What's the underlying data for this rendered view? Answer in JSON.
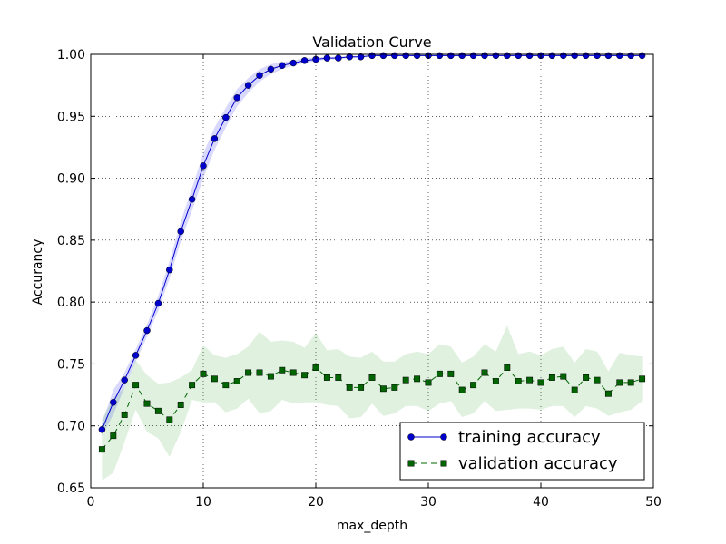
{
  "chart_data": {
    "type": "line",
    "title": "Validation Curve",
    "xlabel": "max_depth",
    "ylabel": "Accurancy",
    "xlim": [
      0,
      50
    ],
    "ylim": [
      0.65,
      1.0
    ],
    "xticks": [
      0,
      10,
      20,
      30,
      40,
      50
    ],
    "yticks": [
      0.65,
      0.7,
      0.75,
      0.8,
      0.85,
      0.9,
      0.95,
      1.0
    ],
    "xtick_labels": [
      "0",
      "10",
      "20",
      "30",
      "40",
      "50"
    ],
    "ytick_labels": [
      "0.65",
      "0.70",
      "0.75",
      "0.80",
      "0.85",
      "0.90",
      "0.95",
      "1.00"
    ],
    "grid": true,
    "legend_position": "lower-right",
    "x": [
      1,
      2,
      3,
      4,
      5,
      6,
      7,
      8,
      9,
      10,
      11,
      12,
      13,
      14,
      15,
      16,
      17,
      18,
      19,
      20,
      21,
      22,
      23,
      24,
      25,
      26,
      27,
      28,
      29,
      30,
      31,
      32,
      33,
      34,
      35,
      36,
      37,
      38,
      39,
      40,
      41,
      42,
      43,
      44,
      45,
      46,
      47,
      48,
      49
    ],
    "series": [
      {
        "name": "training accuracy",
        "color": "#0000cc",
        "band_color": "#0000ff",
        "marker": "circle",
        "linestyle": "solid",
        "values": [
          0.697,
          0.719,
          0.737,
          0.757,
          0.777,
          0.799,
          0.826,
          0.857,
          0.883,
          0.91,
          0.932,
          0.949,
          0.965,
          0.975,
          0.983,
          0.988,
          0.991,
          0.993,
          0.995,
          0.996,
          0.997,
          0.997,
          0.998,
          0.998,
          0.999,
          0.999,
          0.999,
          0.999,
          0.999,
          0.999,
          0.999,
          0.999,
          0.999,
          0.999,
          0.999,
          0.999,
          0.999,
          0.999,
          0.999,
          0.999,
          0.999,
          0.999,
          0.999,
          0.999,
          0.999,
          0.999,
          0.999,
          0.999,
          0.999
        ],
        "std": [
          0.005,
          0.01,
          0.006,
          0.005,
          0.005,
          0.006,
          0.007,
          0.008,
          0.009,
          0.01,
          0.009,
          0.008,
          0.007,
          0.006,
          0.005,
          0.004,
          0.003,
          0.002,
          0.002,
          0.0015,
          0.001,
          0.001,
          0.0008,
          0.0006,
          0.0005,
          0.0005,
          0.0004,
          0.0004,
          0.0004,
          0.0003,
          0.0003,
          0.0003,
          0.0003,
          0.0003,
          0.0003,
          0.0003,
          0.0003,
          0.0003,
          0.0003,
          0.0003,
          0.0003,
          0.0003,
          0.0003,
          0.0003,
          0.0003,
          0.0003,
          0.0003,
          0.0003,
          0.0003
        ]
      },
      {
        "name": "validation accuracy",
        "color": "#006400",
        "band_color": "#2ca02c",
        "marker": "square",
        "linestyle": "dashed",
        "values": [
          0.681,
          0.692,
          0.709,
          0.733,
          0.718,
          0.712,
          0.705,
          0.717,
          0.733,
          0.742,
          0.738,
          0.733,
          0.736,
          0.743,
          0.743,
          0.74,
          0.745,
          0.743,
          0.741,
          0.747,
          0.739,
          0.739,
          0.731,
          0.731,
          0.739,
          0.73,
          0.731,
          0.737,
          0.738,
          0.735,
          0.742,
          0.742,
          0.729,
          0.733,
          0.743,
          0.736,
          0.747,
          0.736,
          0.737,
          0.735,
          0.739,
          0.74,
          0.729,
          0.739,
          0.737,
          0.726,
          0.735,
          0.735,
          0.738
        ],
        "std": [
          0.025,
          0.03,
          0.022,
          0.02,
          0.023,
          0.022,
          0.03,
          0.022,
          0.012,
          0.023,
          0.019,
          0.022,
          0.022,
          0.021,
          0.033,
          0.028,
          0.024,
          0.025,
          0.022,
          0.028,
          0.022,
          0.023,
          0.025,
          0.024,
          0.021,
          0.022,
          0.021,
          0.021,
          0.022,
          0.023,
          0.024,
          0.022,
          0.022,
          0.023,
          0.023,
          0.024,
          0.034,
          0.022,
          0.023,
          0.022,
          0.023,
          0.024,
          0.022,
          0.023,
          0.023,
          0.018,
          0.024,
          0.022,
          0.018
        ]
      }
    ]
  }
}
